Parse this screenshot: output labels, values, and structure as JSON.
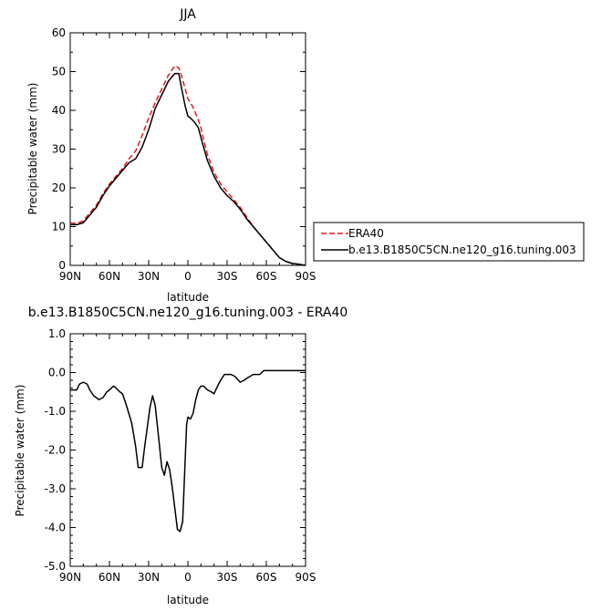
{
  "chart_data": [
    {
      "type": "line",
      "title": "JJA",
      "xlabel": "latitude",
      "ylabel": "Precipitable water (mm)",
      "xlim": [
        90,
        -90
      ],
      "ylim": [
        0,
        60
      ],
      "x_ticks": [
        90,
        60,
        30,
        0,
        -30,
        -60,
        -90
      ],
      "x_tick_labels": [
        "90N",
        "60N",
        "30N",
        "0",
        "30S",
        "60S",
        "90S"
      ],
      "y_ticks": [
        0,
        10,
        20,
        30,
        40,
        50,
        60
      ],
      "y_tick_labels": [
        "0",
        "10",
        "20",
        "30",
        "40",
        "50",
        "60"
      ],
      "legend_placement": "right",
      "series": [
        {
          "name": "ERA40",
          "color": "#e8191c",
          "dash": "dashed",
          "x": [
            90,
            85,
            80,
            75,
            70,
            65,
            60,
            55,
            50,
            45,
            40,
            35,
            30,
            25,
            20,
            15,
            10,
            7,
            5,
            2,
            0,
            -2,
            -5,
            -8,
            -10,
            -12,
            -15,
            -20,
            -25,
            -30,
            -35,
            -40,
            -45,
            -50,
            -55,
            -60,
            -65,
            -70,
            -75,
            -80,
            -85,
            -90
          ],
          "y": [
            11,
            10.8,
            11.5,
            13.5,
            15.5,
            18.5,
            21,
            23,
            25,
            27.5,
            29.5,
            33.5,
            38,
            42,
            45.5,
            49,
            51.5,
            51,
            49,
            45.5,
            43,
            42,
            40,
            37.5,
            35.5,
            32.5,
            28.5,
            24,
            21,
            19,
            17,
            15,
            12.5,
            10,
            8,
            6,
            4,
            2,
            1,
            0.5,
            0.3,
            0
          ]
        },
        {
          "name": "b.e13.B1850C5CN.ne120_g16.tuning.003",
          "color": "#000000",
          "dash": "solid",
          "x": [
            90,
            85,
            80,
            75,
            70,
            65,
            60,
            55,
            50,
            45,
            40,
            35,
            30,
            25,
            20,
            15,
            10,
            7,
            5,
            2,
            0,
            -2,
            -5,
            -8,
            -10,
            -12,
            -15,
            -20,
            -25,
            -30,
            -35,
            -40,
            -45,
            -50,
            -55,
            -60,
            -65,
            -70,
            -75,
            -80,
            -85,
            -90
          ],
          "y": [
            10.5,
            10.5,
            11,
            13,
            15,
            18,
            20.5,
            22.5,
            24.5,
            26.5,
            27.5,
            30.5,
            35,
            40.5,
            44,
            47.5,
            49.5,
            49.5,
            46,
            41,
            38.5,
            38,
            37,
            35.5,
            33,
            30.5,
            27,
            23,
            20,
            18,
            16.5,
            14.5,
            12,
            10,
            8,
            6,
            4,
            2,
            1,
            0.5,
            0.3,
            0
          ]
        }
      ]
    },
    {
      "type": "line",
      "title": "b.e13.B1850C5CN.ne120_g16.tuning.003 - ERA40",
      "xlabel": "latitude",
      "ylabel": "Precipitable water (mm)",
      "xlim": [
        90,
        -90
      ],
      "ylim": [
        -5,
        1
      ],
      "x_ticks": [
        90,
        60,
        30,
        0,
        -30,
        -60,
        -90
      ],
      "x_tick_labels": [
        "90N",
        "60N",
        "30N",
        "0",
        "30S",
        "60S",
        "90S"
      ],
      "y_ticks": [
        1,
        0,
        -1,
        -2,
        -3,
        -4,
        -5
      ],
      "y_tick_labels": [
        "1.0",
        "0.0",
        "-1.0",
        "-2.0",
        "-3.0",
        "-4.0",
        "-5.0"
      ],
      "series": [
        {
          "color": "#000000",
          "dash": "solid",
          "x": [
            90,
            85,
            83,
            80,
            77,
            75,
            72,
            68,
            65,
            62,
            60,
            57,
            55,
            52,
            50,
            47,
            43,
            40,
            38,
            35,
            33,
            31,
            29,
            27,
            25,
            22,
            20,
            18,
            16,
            14,
            12,
            10,
            8,
            6,
            4,
            2,
            1,
            0,
            -2,
            -4,
            -6,
            -8,
            -10,
            -12,
            -15,
            -18,
            -20,
            -22,
            -25,
            -28,
            -30,
            -33,
            -36,
            -40,
            -43,
            -45,
            -50,
            -55,
            -58,
            -60,
            -63,
            -65,
            -70,
            -75,
            -80,
            -85,
            -90
          ],
          "y": [
            -0.45,
            -0.45,
            -0.3,
            -0.25,
            -0.3,
            -0.45,
            -0.6,
            -0.7,
            -0.65,
            -0.5,
            -0.45,
            -0.35,
            -0.4,
            -0.5,
            -0.55,
            -0.85,
            -1.3,
            -1.9,
            -2.45,
            -2.45,
            -1.9,
            -1.4,
            -0.9,
            -0.6,
            -0.85,
            -1.8,
            -2.45,
            -2.65,
            -2.3,
            -2.5,
            -2.95,
            -3.5,
            -4.05,
            -4.1,
            -3.85,
            -2.2,
            -1.35,
            -1.15,
            -1.2,
            -1.05,
            -0.7,
            -0.45,
            -0.35,
            -0.35,
            -0.45,
            -0.5,
            -0.55,
            -0.4,
            -0.2,
            -0.05,
            -0.05,
            -0.05,
            -0.1,
            -0.25,
            -0.2,
            -0.15,
            -0.05,
            -0.05,
            0.05,
            0.05,
            0.05,
            0.05,
            0.05,
            0.05,
            0.05,
            0.05,
            0.05
          ]
        }
      ]
    }
  ]
}
